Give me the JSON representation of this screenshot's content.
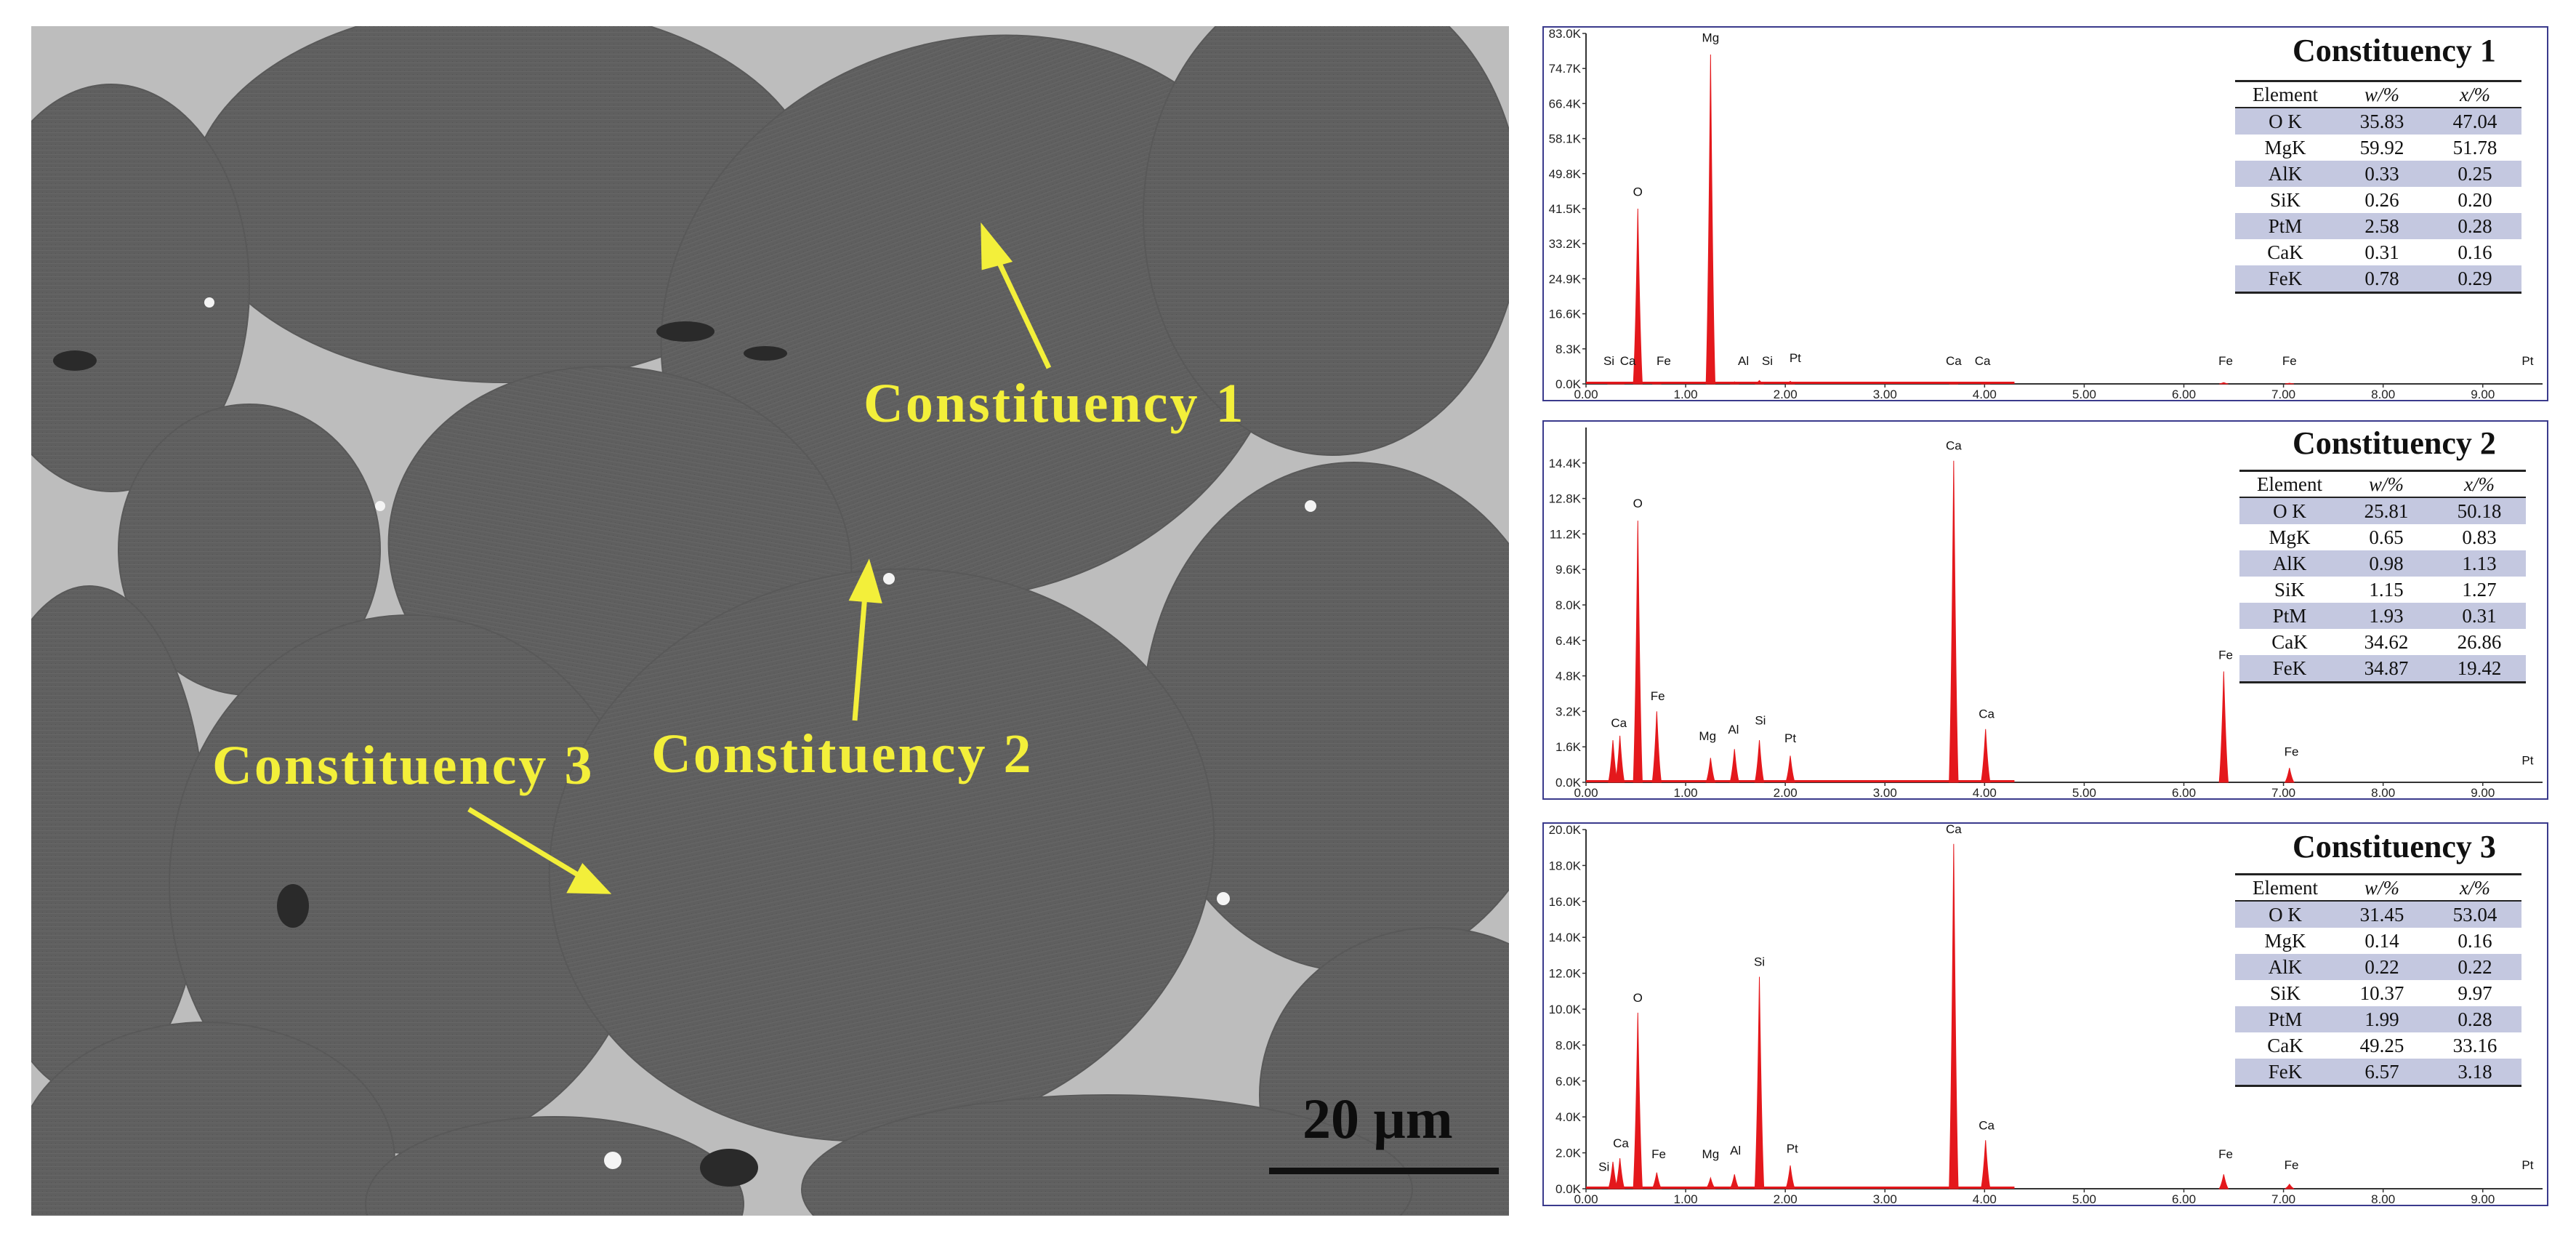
{
  "image": {
    "sem_labels": [
      "Constituency 1",
      "Constituency 2",
      "Constituency 3"
    ],
    "scale_bar": "20 μm"
  },
  "colors": {
    "spectrum_fill": "#e4181c",
    "panel_border": "#3a3a8c",
    "table_shade": "#c4c8e0",
    "label_yellow": "#f3ef3a",
    "grain_gray": "#5e5e5e",
    "binder_gray": "#bdbdbd"
  },
  "chart_data": [
    {
      "type": "area",
      "title": "Constituency 1",
      "x_ticks": [
        "0.00",
        "1.00",
        "2.00",
        "3.00",
        "4.00",
        "5.00",
        "6.00",
        "7.00",
        "8.00",
        "9.00"
      ],
      "y_ticks": [
        "0.0K",
        "8.3K",
        "16.6K",
        "24.9K",
        "33.2K",
        "41.5K",
        "49.8K",
        "58.1K",
        "66.4K",
        "74.7K",
        "83.0K"
      ],
      "xlim": [
        0,
        9.6
      ],
      "ylim": [
        0,
        83000
      ],
      "peaks": [
        {
          "x": 0.52,
          "y": 41500
        },
        {
          "x": 1.25,
          "y": 78000
        },
        {
          "x": 0.26,
          "y": 300
        },
        {
          "x": 0.34,
          "y": 300
        },
        {
          "x": 0.71,
          "y": 400
        },
        {
          "x": 1.49,
          "y": 500
        },
        {
          "x": 1.74,
          "y": 800
        },
        {
          "x": 2.05,
          "y": 600
        },
        {
          "x": 3.69,
          "y": 200
        },
        {
          "x": 4.01,
          "y": 200
        },
        {
          "x": 6.4,
          "y": 300
        },
        {
          "x": 7.06,
          "y": 150
        }
      ],
      "peak_labels": [
        {
          "x": 0.23,
          "y": 4500,
          "text": "Si"
        },
        {
          "x": 0.42,
          "y": 4500,
          "text": "Ca"
        },
        {
          "x": 0.78,
          "y": 4500,
          "text": "Fe"
        },
        {
          "x": 0.52,
          "y": 44500,
          "text": "O"
        },
        {
          "x": 1.25,
          "y": 81000,
          "text": "Mg"
        },
        {
          "x": 1.58,
          "y": 4500,
          "text": "Al"
        },
        {
          "x": 1.82,
          "y": 4500,
          "text": "Si"
        },
        {
          "x": 2.1,
          "y": 5200,
          "text": "Pt"
        },
        {
          "x": 3.69,
          "y": 4500,
          "text": "Ca"
        },
        {
          "x": 3.98,
          "y": 4500,
          "text": "Ca"
        },
        {
          "x": 6.42,
          "y": 4500,
          "text": "Fe"
        },
        {
          "x": 7.06,
          "y": 4500,
          "text": "Fe"
        },
        {
          "x": 9.45,
          "y": 4500,
          "text": "Pt"
        }
      ],
      "table": {
        "columns": [
          "Element",
          "w/%",
          "x/%"
        ],
        "rows": [
          [
            "O K",
            "35.83",
            "47.04"
          ],
          [
            "MgK",
            "59.92",
            "51.78"
          ],
          [
            "AlK",
            "0.33",
            "0.25"
          ],
          [
            "SiK",
            "0.26",
            "0.20"
          ],
          [
            "PtM",
            "2.58",
            "0.28"
          ],
          [
            "CaK",
            "0.31",
            "0.16"
          ],
          [
            "FeK",
            "0.78",
            "0.29"
          ]
        ]
      }
    },
    {
      "type": "area",
      "title": "Constituency 2",
      "x_ticks": [
        "0.00",
        "1.00",
        "2.00",
        "3.00",
        "4.00",
        "5.00",
        "6.00",
        "7.00",
        "8.00",
        "9.00"
      ],
      "y_ticks": [
        "0.0K",
        "1.6K",
        "3.2K",
        "4.8K",
        "6.4K",
        "8.0K",
        "9.6K",
        "11.2K",
        "12.8K",
        "14.4K"
      ],
      "xlim": [
        0,
        9.6
      ],
      "ylim": [
        0,
        16000
      ],
      "peaks": [
        {
          "x": 0.27,
          "y": 1900
        },
        {
          "x": 0.34,
          "y": 2100
        },
        {
          "x": 0.52,
          "y": 11800
        },
        {
          "x": 0.71,
          "y": 3200
        },
        {
          "x": 1.25,
          "y": 1100
        },
        {
          "x": 1.49,
          "y": 1500
        },
        {
          "x": 1.74,
          "y": 1900
        },
        {
          "x": 2.05,
          "y": 1200
        },
        {
          "x": 3.69,
          "y": 14500
        },
        {
          "x": 4.01,
          "y": 2400
        },
        {
          "x": 6.4,
          "y": 5000
        },
        {
          "x": 7.06,
          "y": 650
        }
      ],
      "peak_labels": [
        {
          "x": 0.33,
          "y": 2500,
          "text": "Ca"
        },
        {
          "x": 0.52,
          "y": 12400,
          "text": "O"
        },
        {
          "x": 0.72,
          "y": 3700,
          "text": "Fe"
        },
        {
          "x": 1.22,
          "y": 1900,
          "text": "Mg"
        },
        {
          "x": 1.48,
          "y": 2200,
          "text": "Al"
        },
        {
          "x": 1.75,
          "y": 2600,
          "text": "Si"
        },
        {
          "x": 2.05,
          "y": 1800,
          "text": "Pt"
        },
        {
          "x": 3.69,
          "y": 15000,
          "text": "Ca"
        },
        {
          "x": 4.02,
          "y": 2900,
          "text": "Ca"
        },
        {
          "x": 6.42,
          "y": 5550,
          "text": "Fe"
        },
        {
          "x": 7.08,
          "y": 1200,
          "text": "Fe"
        },
        {
          "x": 9.45,
          "y": 800,
          "text": "Pt"
        }
      ],
      "table": {
        "columns": [
          "Element",
          "w/%",
          "x/%"
        ],
        "rows": [
          [
            "O K",
            "25.81",
            "50.18"
          ],
          [
            "MgK",
            "0.65",
            "0.83"
          ],
          [
            "AlK",
            "0.98",
            "1.13"
          ],
          [
            "SiK",
            "1.15",
            "1.27"
          ],
          [
            "PtM",
            "1.93",
            "0.31"
          ],
          [
            "CaK",
            "34.62",
            "26.86"
          ],
          [
            "FeK",
            "34.87",
            "19.42"
          ]
        ]
      }
    },
    {
      "type": "area",
      "title": "Constituency 3",
      "x_ticks": [
        "0.00",
        "1.00",
        "2.00",
        "3.00",
        "4.00",
        "5.00",
        "6.00",
        "7.00",
        "8.00",
        "9.00"
      ],
      "y_ticks": [
        "0.0K",
        "2.0K",
        "4.0K",
        "6.0K",
        "8.0K",
        "10.0K",
        "12.0K",
        "14.0K",
        "16.0K",
        "18.0K",
        "20.0K"
      ],
      "xlim": [
        0,
        9.6
      ],
      "ylim": [
        0,
        20000
      ],
      "peaks": [
        {
          "x": 0.27,
          "y": 1500
        },
        {
          "x": 0.34,
          "y": 1700
        },
        {
          "x": 0.52,
          "y": 9800
        },
        {
          "x": 0.71,
          "y": 900
        },
        {
          "x": 1.25,
          "y": 600
        },
        {
          "x": 1.49,
          "y": 800
        },
        {
          "x": 1.74,
          "y": 11800
        },
        {
          "x": 2.05,
          "y": 1300
        },
        {
          "x": 3.69,
          "y": 19200
        },
        {
          "x": 4.01,
          "y": 2700
        },
        {
          "x": 6.4,
          "y": 800
        },
        {
          "x": 7.06,
          "y": 250
        }
      ],
      "peak_labels": [
        {
          "x": 0.18,
          "y": 1000,
          "text": "Si"
        },
        {
          "x": 0.35,
          "y": 2300,
          "text": "Ca"
        },
        {
          "x": 0.52,
          "y": 10400,
          "text": "O"
        },
        {
          "x": 0.73,
          "y": 1700,
          "text": "Fe"
        },
        {
          "x": 1.25,
          "y": 1700,
          "text": "Mg"
        },
        {
          "x": 1.5,
          "y": 1900,
          "text": "Al"
        },
        {
          "x": 1.74,
          "y": 12400,
          "text": "Si"
        },
        {
          "x": 2.07,
          "y": 2000,
          "text": "Pt"
        },
        {
          "x": 3.69,
          "y": 19800,
          "text": "Ca"
        },
        {
          "x": 4.02,
          "y": 3300,
          "text": "Ca"
        },
        {
          "x": 6.42,
          "y": 1700,
          "text": "Fe"
        },
        {
          "x": 7.08,
          "y": 1100,
          "text": "Fe"
        },
        {
          "x": 9.45,
          "y": 1100,
          "text": "Pt"
        }
      ],
      "table": {
        "columns": [
          "Element",
          "w/%",
          "x/%"
        ],
        "rows": [
          [
            "O K",
            "31.45",
            "53.04"
          ],
          [
            "MgK",
            "0.14",
            "0.16"
          ],
          [
            "AlK",
            "0.22",
            "0.22"
          ],
          [
            "SiK",
            "10.37",
            "9.97"
          ],
          [
            "PtM",
            "1.99",
            "0.28"
          ],
          [
            "CaK",
            "49.25",
            "33.16"
          ],
          [
            "FeK",
            "6.57",
            "3.18"
          ]
        ]
      }
    }
  ]
}
